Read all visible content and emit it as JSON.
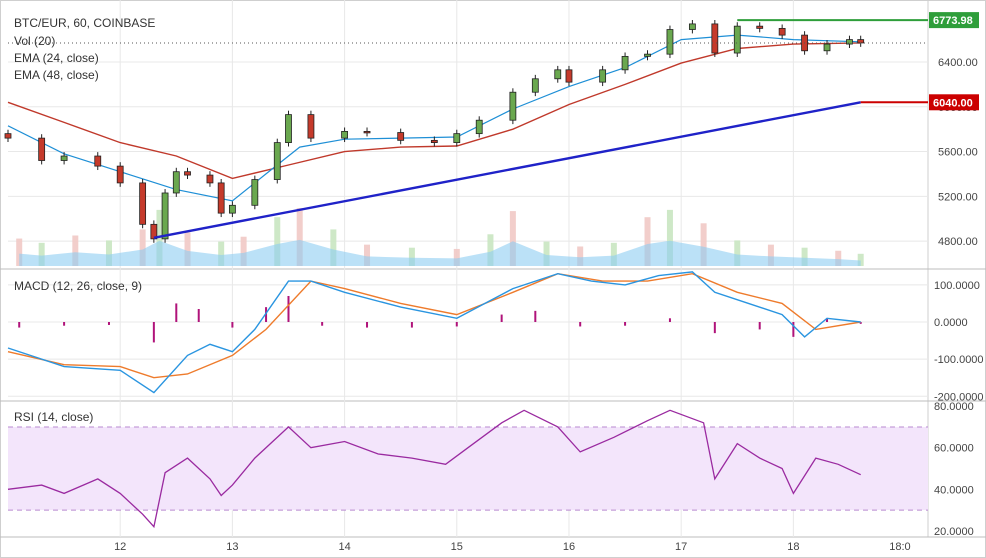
{
  "chart_data": {
    "type": "candlestick",
    "title": "BTC/EUR, 60, COINBASE",
    "indicators": [
      "Vol (20)",
      "EMA (24, close)",
      "EMA (48, close)"
    ],
    "x_ticks": [
      "12",
      "13",
      "14",
      "15",
      "16",
      "17",
      "18",
      "18:0"
    ],
    "price_axis": {
      "ticks": [
        "6400.00",
        "6000.00",
        "5600.00",
        "5200.00",
        "4800.00"
      ],
      "ylim": [
        4560,
        6900
      ]
    },
    "price_tags": [
      {
        "label": "6773.98",
        "value": 6773.98,
        "color": "#2e9e3a"
      },
      {
        "label": "6040.00",
        "value": 6040.0,
        "color": "#cc0000"
      }
    ],
    "horizontal_line": {
      "value": 6773.98,
      "color": "#2e9e3a"
    },
    "trendline": {
      "from": {
        "t": 12.3,
        "v": 4830
      },
      "to": {
        "t": 18.6,
        "v": 6040
      },
      "color": "#1f22c8"
    },
    "close_series": [
      {
        "t": 11.0,
        "v": 5720
      },
      {
        "t": 11.3,
        "v": 5520
      },
      {
        "t": 11.5,
        "v": 5560
      },
      {
        "t": 11.8,
        "v": 5470
      },
      {
        "t": 12.0,
        "v": 5320
      },
      {
        "t": 12.2,
        "v": 4950
      },
      {
        "t": 12.3,
        "v": 4820
      },
      {
        "t": 12.4,
        "v": 5230
      },
      {
        "t": 12.5,
        "v": 5420
      },
      {
        "t": 12.6,
        "v": 5390
      },
      {
        "t": 12.8,
        "v": 5320
      },
      {
        "t": 12.9,
        "v": 5050
      },
      {
        "t": 13.0,
        "v": 5120
      },
      {
        "t": 13.2,
        "v": 5350
      },
      {
        "t": 13.4,
        "v": 5680
      },
      {
        "t": 13.5,
        "v": 5930
      },
      {
        "t": 13.7,
        "v": 5720
      },
      {
        "t": 14.0,
        "v": 5780
      },
      {
        "t": 14.2,
        "v": 5770
      },
      {
        "t": 14.5,
        "v": 5700
      },
      {
        "t": 14.8,
        "v": 5680
      },
      {
        "t": 15.0,
        "v": 5760
      },
      {
        "t": 15.2,
        "v": 5880
      },
      {
        "t": 15.5,
        "v": 6130
      },
      {
        "t": 15.7,
        "v": 6250
      },
      {
        "t": 15.9,
        "v": 6330
      },
      {
        "t": 16.0,
        "v": 6220
      },
      {
        "t": 16.3,
        "v": 6330
      },
      {
        "t": 16.5,
        "v": 6450
      },
      {
        "t": 16.7,
        "v": 6470
      },
      {
        "t": 16.9,
        "v": 6690
      },
      {
        "t": 17.1,
        "v": 6740
      },
      {
        "t": 17.3,
        "v": 6480
      },
      {
        "t": 17.5,
        "v": 6720
      },
      {
        "t": 17.7,
        "v": 6700
      },
      {
        "t": 17.9,
        "v": 6640
      },
      {
        "t": 18.1,
        "v": 6500
      },
      {
        "t": 18.3,
        "v": 6560
      },
      {
        "t": 18.5,
        "v": 6600
      },
      {
        "t": 18.6,
        "v": 6570
      }
    ],
    "ema24": [
      {
        "t": 11.0,
        "v": 5830
      },
      {
        "t": 11.5,
        "v": 5580
      },
      {
        "t": 12.0,
        "v": 5420
      },
      {
        "t": 12.5,
        "v": 5260
      },
      {
        "t": 13.0,
        "v": 5160
      },
      {
        "t": 13.3,
        "v": 5400
      },
      {
        "t": 13.6,
        "v": 5640
      },
      {
        "t": 14.0,
        "v": 5710
      },
      {
        "t": 14.5,
        "v": 5720
      },
      {
        "t": 15.0,
        "v": 5730
      },
      {
        "t": 15.5,
        "v": 5980
      },
      {
        "t": 16.0,
        "v": 6180
      },
      {
        "t": 16.5,
        "v": 6350
      },
      {
        "t": 17.0,
        "v": 6600
      },
      {
        "t": 17.5,
        "v": 6640
      },
      {
        "t": 18.0,
        "v": 6600
      },
      {
        "t": 18.6,
        "v": 6580
      }
    ],
    "ema48": [
      {
        "t": 11.0,
        "v": 6040
      },
      {
        "t": 11.5,
        "v": 5860
      },
      {
        "t": 12.0,
        "v": 5680
      },
      {
        "t": 12.5,
        "v": 5560
      },
      {
        "t": 13.0,
        "v": 5360
      },
      {
        "t": 13.5,
        "v": 5480
      },
      {
        "t": 14.0,
        "v": 5600
      },
      {
        "t": 14.5,
        "v": 5640
      },
      {
        "t": 15.0,
        "v": 5650
      },
      {
        "t": 15.5,
        "v": 5800
      },
      {
        "t": 16.0,
        "v": 6020
      },
      {
        "t": 16.5,
        "v": 6200
      },
      {
        "t": 17.0,
        "v": 6390
      },
      {
        "t": 17.5,
        "v": 6520
      },
      {
        "t": 18.0,
        "v": 6560
      },
      {
        "t": 18.6,
        "v": 6570
      }
    ],
    "volume": [
      {
        "t": 11.1,
        "v": 45
      },
      {
        "t": 11.3,
        "v": 38
      },
      {
        "t": 11.6,
        "v": 50
      },
      {
        "t": 11.9,
        "v": 42
      },
      {
        "t": 12.2,
        "v": 60
      },
      {
        "t": 12.35,
        "v": 92
      },
      {
        "t": 12.6,
        "v": 55
      },
      {
        "t": 12.9,
        "v": 40
      },
      {
        "t": 13.1,
        "v": 48
      },
      {
        "t": 13.4,
        "v": 80
      },
      {
        "t": 13.6,
        "v": 95
      },
      {
        "t": 13.9,
        "v": 60
      },
      {
        "t": 14.2,
        "v": 35
      },
      {
        "t": 14.6,
        "v": 30
      },
      {
        "t": 15.0,
        "v": 28
      },
      {
        "t": 15.3,
        "v": 52
      },
      {
        "t": 15.5,
        "v": 90
      },
      {
        "t": 15.8,
        "v": 40
      },
      {
        "t": 16.1,
        "v": 32
      },
      {
        "t": 16.4,
        "v": 38
      },
      {
        "t": 16.7,
        "v": 80
      },
      {
        "t": 16.9,
        "v": 92
      },
      {
        "t": 17.2,
        "v": 70
      },
      {
        "t": 17.5,
        "v": 42
      },
      {
        "t": 17.8,
        "v": 35
      },
      {
        "t": 18.1,
        "v": 30
      },
      {
        "t": 18.4,
        "v": 25
      },
      {
        "t": 18.6,
        "v": 20
      }
    ],
    "macd_pane": {
      "label": "MACD (12, 26, close, 9)",
      "ticks": [
        "100.0000",
        "0.0000",
        "-100.0000",
        "-200.0000"
      ],
      "ylim": [
        -210,
        140
      ],
      "macd": [
        {
          "t": 11.0,
          "v": -70
        },
        {
          "t": 11.5,
          "v": -120
        },
        {
          "t": 12.0,
          "v": -130
        },
        {
          "t": 12.3,
          "v": -190
        },
        {
          "t": 12.6,
          "v": -90
        },
        {
          "t": 12.8,
          "v": -60
        },
        {
          "t": 13.0,
          "v": -80
        },
        {
          "t": 13.2,
          "v": -20
        },
        {
          "t": 13.5,
          "v": 110
        },
        {
          "t": 13.7,
          "v": 110
        },
        {
          "t": 14.0,
          "v": 80
        },
        {
          "t": 14.5,
          "v": 40
        },
        {
          "t": 15.0,
          "v": 10
        },
        {
          "t": 15.5,
          "v": 90
        },
        {
          "t": 15.9,
          "v": 130
        },
        {
          "t": 16.2,
          "v": 110
        },
        {
          "t": 16.5,
          "v": 100
        },
        {
          "t": 16.8,
          "v": 125
        },
        {
          "t": 17.1,
          "v": 135
        },
        {
          "t": 17.3,
          "v": 80
        },
        {
          "t": 17.6,
          "v": 50
        },
        {
          "t": 17.9,
          "v": 20
        },
        {
          "t": 18.1,
          "v": -40
        },
        {
          "t": 18.3,
          "v": 10
        },
        {
          "t": 18.6,
          "v": 0
        }
      ],
      "signal": [
        {
          "t": 11.0,
          "v": -80
        },
        {
          "t": 11.5,
          "v": -115
        },
        {
          "t": 12.0,
          "v": -120
        },
        {
          "t": 12.3,
          "v": -150
        },
        {
          "t": 12.6,
          "v": -140
        },
        {
          "t": 13.0,
          "v": -90
        },
        {
          "t": 13.3,
          "v": -20
        },
        {
          "t": 13.7,
          "v": 110
        },
        {
          "t": 14.0,
          "v": 90
        },
        {
          "t": 14.5,
          "v": 50
        },
        {
          "t": 15.0,
          "v": 20
        },
        {
          "t": 15.5,
          "v": 80
        },
        {
          "t": 15.9,
          "v": 130
        },
        {
          "t": 16.3,
          "v": 110
        },
        {
          "t": 16.7,
          "v": 110
        },
        {
          "t": 17.1,
          "v": 130
        },
        {
          "t": 17.5,
          "v": 80
        },
        {
          "t": 17.9,
          "v": 50
        },
        {
          "t": 18.2,
          "v": -20
        },
        {
          "t": 18.6,
          "v": 0
        }
      ],
      "histogram": [
        {
          "t": 11.1,
          "v": -15
        },
        {
          "t": 11.5,
          "v": -10
        },
        {
          "t": 11.9,
          "v": -8
        },
        {
          "t": 12.3,
          "v": -55
        },
        {
          "t": 12.5,
          "v": 50
        },
        {
          "t": 12.7,
          "v": 35
        },
        {
          "t": 13.0,
          "v": -15
        },
        {
          "t": 13.3,
          "v": 40
        },
        {
          "t": 13.5,
          "v": 70
        },
        {
          "t": 13.8,
          "v": -10
        },
        {
          "t": 14.2,
          "v": -15
        },
        {
          "t": 14.6,
          "v": -15
        },
        {
          "t": 15.0,
          "v": -12
        },
        {
          "t": 15.4,
          "v": 20
        },
        {
          "t": 15.7,
          "v": 30
        },
        {
          "t": 16.1,
          "v": -12
        },
        {
          "t": 16.5,
          "v": -10
        },
        {
          "t": 16.9,
          "v": 10
        },
        {
          "t": 17.3,
          "v": -30
        },
        {
          "t": 17.7,
          "v": -20
        },
        {
          "t": 18.0,
          "v": -40
        },
        {
          "t": 18.3,
          "v": 10
        },
        {
          "t": 18.6,
          "v": -5
        }
      ]
    },
    "rsi_pane": {
      "label": "RSI (14, close)",
      "ticks": [
        "80.0000",
        "60.0000",
        "40.0000",
        "20.0000"
      ],
      "ylim": [
        18,
        82
      ],
      "band": [
        30,
        70
      ],
      "rsi": [
        {
          "t": 11.0,
          "v": 40
        },
        {
          "t": 11.3,
          "v": 42
        },
        {
          "t": 11.5,
          "v": 38
        },
        {
          "t": 11.8,
          "v": 45
        },
        {
          "t": 12.0,
          "v": 38
        },
        {
          "t": 12.2,
          "v": 28
        },
        {
          "t": 12.3,
          "v": 22
        },
        {
          "t": 12.4,
          "v": 48
        },
        {
          "t": 12.6,
          "v": 55
        },
        {
          "t": 12.8,
          "v": 45
        },
        {
          "t": 12.9,
          "v": 37
        },
        {
          "t": 13.0,
          "v": 42
        },
        {
          "t": 13.2,
          "v": 55
        },
        {
          "t": 13.5,
          "v": 70
        },
        {
          "t": 13.7,
          "v": 60
        },
        {
          "t": 14.0,
          "v": 63
        },
        {
          "t": 14.3,
          "v": 57
        },
        {
          "t": 14.6,
          "v": 55
        },
        {
          "t": 14.9,
          "v": 52
        },
        {
          "t": 15.1,
          "v": 60
        },
        {
          "t": 15.4,
          "v": 72
        },
        {
          "t": 15.6,
          "v": 78
        },
        {
          "t": 15.9,
          "v": 70
        },
        {
          "t": 16.1,
          "v": 58
        },
        {
          "t": 16.4,
          "v": 65
        },
        {
          "t": 16.7,
          "v": 73
        },
        {
          "t": 16.9,
          "v": 78
        },
        {
          "t": 17.2,
          "v": 72
        },
        {
          "t": 17.3,
          "v": 45
        },
        {
          "t": 17.5,
          "v": 62
        },
        {
          "t": 17.7,
          "v": 55
        },
        {
          "t": 17.9,
          "v": 50
        },
        {
          "t": 18.0,
          "v": 38
        },
        {
          "t": 18.2,
          "v": 55
        },
        {
          "t": 18.4,
          "v": 52
        },
        {
          "t": 18.6,
          "v": 47
        }
      ]
    },
    "colors": {
      "up": "#6aa84f",
      "down": "#c53a2b",
      "ema24": "#1e8fd6",
      "ema48": "#c0392b",
      "macd": "#2a95e0",
      "signal": "#ee7b2c",
      "histogram": "#b0137a",
      "rsi": "#9a2aa0",
      "rsi_band": "#f3e5fb",
      "volume_area": "#8ecdf2",
      "grid": "#e8e8e8"
    }
  }
}
